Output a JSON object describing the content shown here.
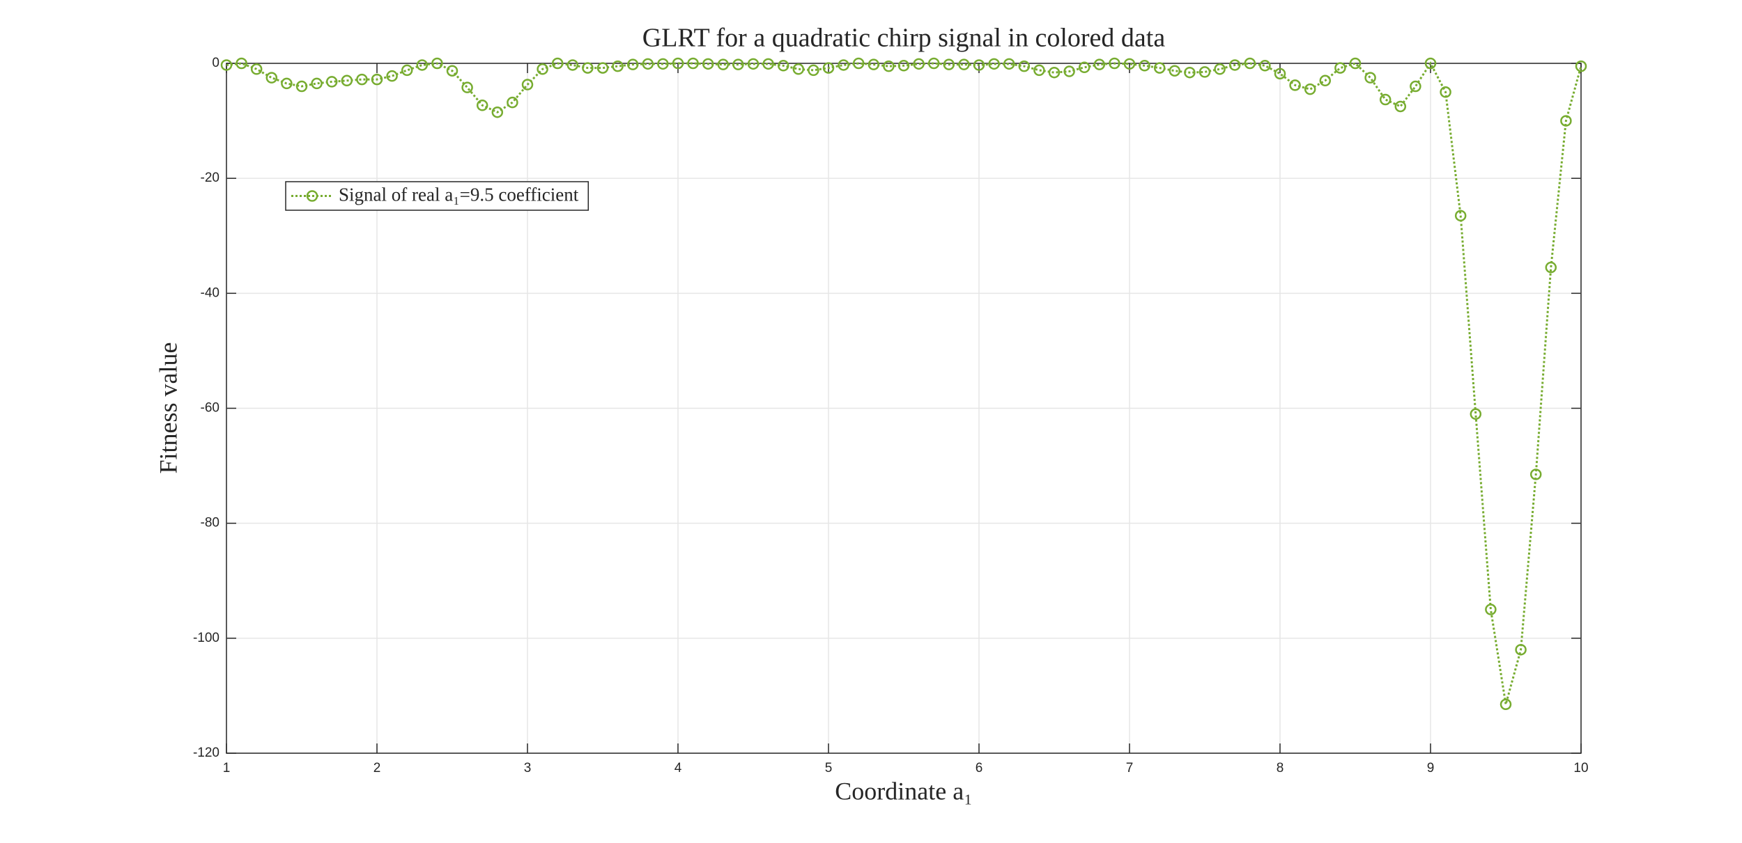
{
  "chart_data": {
    "type": "line",
    "title": "GLRT for a quadratic chirp signal in colored data",
    "x_label": "Coordinate a₁",
    "y_label": "Fitness value",
    "x": [
      1.0,
      1.1,
      1.2,
      1.3,
      1.4,
      1.5,
      1.6,
      1.7,
      1.8,
      1.9,
      2.0,
      2.1,
      2.2,
      2.3,
      2.4,
      2.5,
      2.6,
      2.7,
      2.8,
      2.9,
      3.0,
      3.1,
      3.2,
      3.3,
      3.4,
      3.5,
      3.6,
      3.7,
      3.8,
      3.9,
      4.0,
      4.1,
      4.2,
      4.3,
      4.4,
      4.5,
      4.6,
      4.7,
      4.8,
      4.9,
      5.0,
      5.1,
      5.2,
      5.3,
      5.4,
      5.5,
      5.6,
      5.7,
      5.8,
      5.9,
      6.0,
      6.1,
      6.2,
      6.3,
      6.4,
      6.5,
      6.6,
      6.7,
      6.8,
      6.9,
      7.0,
      7.1,
      7.2,
      7.3,
      7.4,
      7.5,
      7.6,
      7.7,
      7.8,
      7.9,
      8.0,
      8.1,
      8.2,
      8.3,
      8.4,
      8.5,
      8.6,
      8.7,
      8.8,
      8.9,
      9.0,
      9.1,
      9.2,
      9.3,
      9.4,
      9.5,
      9.6,
      9.7,
      9.8,
      9.9,
      10.0
    ],
    "series": [
      {
        "name": "Signal of real a₁=9.5 coefficient",
        "color": "#77ac30",
        "values": [
          -0.3,
          0,
          -1,
          -2.5,
          -3.5,
          -4,
          -3.5,
          -3.2,
          -3,
          -2.8,
          -2.8,
          -2.2,
          -1.2,
          -0.3,
          0,
          -1.3,
          -4.2,
          -7.3,
          -8.5,
          -6.8,
          -3.7,
          -1,
          0,
          -0.3,
          -0.8,
          -0.8,
          -0.5,
          -0.2,
          -0.1,
          -0.1,
          0,
          0,
          -0.1,
          -0.2,
          -0.2,
          -0.1,
          -0.1,
          -0.4,
          -1,
          -1.2,
          -0.8,
          -0.3,
          0,
          -0.2,
          -0.5,
          -0.4,
          -0.1,
          0,
          -0.2,
          -0.2,
          -0.3,
          -0.1,
          -0.1,
          -0.5,
          -1.2,
          -1.6,
          -1.4,
          -0.7,
          -0.2,
          0,
          -0.1,
          -0.4,
          -0.8,
          -1.3,
          -1.6,
          -1.5,
          -1,
          -0.3,
          0,
          -0.4,
          -1.8,
          -3.8,
          -4.5,
          -3,
          -0.8,
          0,
          -2.5,
          -6.3,
          -7.5,
          -4,
          0,
          -5,
          -26.5,
          -61,
          -95,
          -111.5,
          -102,
          -71.5,
          -35.5,
          -10,
          -0.5
        ]
      }
    ],
    "xlim": [
      1,
      10
    ],
    "ylim": [
      -120,
      0
    ],
    "xticks": [
      1,
      2,
      3,
      4,
      5,
      6,
      7,
      8,
      9,
      10
    ],
    "yticks": [
      -120,
      -100,
      -80,
      -60,
      -40,
      -20,
      0
    ],
    "grid": true,
    "legend": "upper left"
  }
}
